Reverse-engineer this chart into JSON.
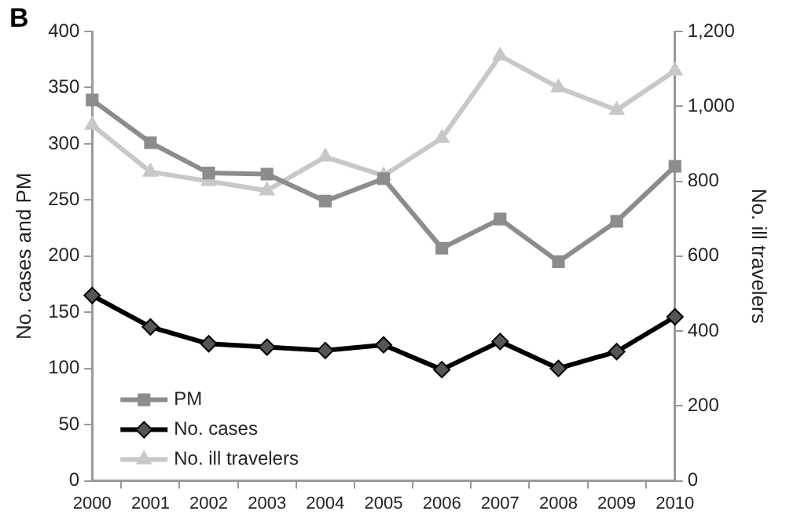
{
  "chart_data": {
    "type": "line",
    "annotations": [
      "B"
    ],
    "ylabel": "No. cases and PM",
    "y2label": "No. ill travelers",
    "categories": [
      "2000",
      "2001",
      "2002",
      "2003",
      "2004",
      "2005",
      "2006",
      "2007",
      "2008",
      "2009",
      "2010"
    ],
    "series": [
      {
        "name": "PM",
        "color": "#8c8c8c",
        "marker": "square",
        "values": [
          339,
          301,
          274,
          273,
          249,
          269,
          207,
          233,
          195,
          231,
          280
        ]
      },
      {
        "name": "No. cases",
        "color": "#000000",
        "marker": "diamond",
        "values": [
          165,
          137,
          122,
          119,
          116,
          121,
          99,
          124,
          100,
          115,
          146
        ]
      },
      {
        "name": "No. ill travelers",
        "color": "#c8c8c8",
        "marker": "triangle",
        "axis": "y2",
        "values": [
          950,
          825,
          800,
          775,
          865,
          815,
          915,
          1135,
          1050,
          990,
          1095
        ]
      }
    ],
    "ylim": [
      0,
      400
    ],
    "yticks": [
      0,
      50,
      100,
      150,
      200,
      250,
      300,
      350,
      400
    ],
    "y2lim": [
      0,
      1200
    ],
    "y2ticks": [
      0,
      {
        "value": 200,
        "label": "200"
      },
      {
        "value": 400,
        "label": "400"
      },
      {
        "value": 600,
        "label": "600"
      },
      {
        "value": 800,
        "label": "800"
      },
      {
        "value": 1000,
        "label": "1,000"
      },
      {
        "value": 1200,
        "label": "1,200"
      }
    ],
    "grid": false,
    "legend": "bottom left",
    "line_style": "solid"
  }
}
